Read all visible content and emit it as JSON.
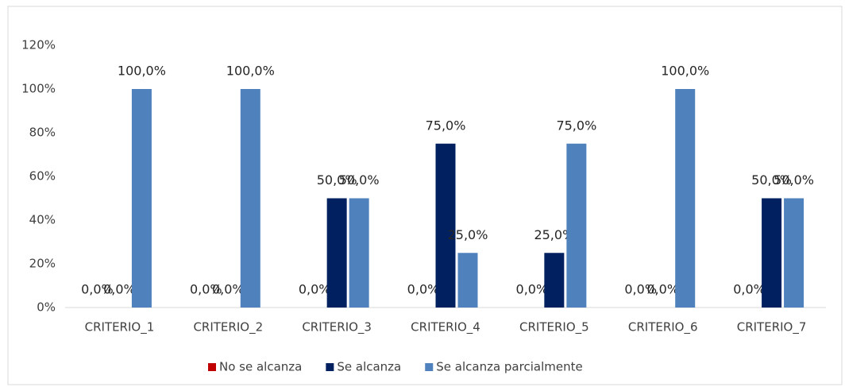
{
  "chart_data": {
    "type": "bar",
    "categories": [
      "CRITERIO_1",
      "CRITERIO_2",
      "CRITERIO_3",
      "CRITERIO_4",
      "CRITERIO_5",
      "CRITERIO_6",
      "CRITERIO_7"
    ],
    "series": [
      {
        "name": "No se alcanza",
        "color": "#c00000",
        "values": [
          0,
          0,
          0,
          0,
          0,
          0,
          0
        ],
        "value_labels": [
          "0,0%",
          "0,0%",
          "0,0%",
          "0,0%",
          "0,0%",
          "0,0%",
          "0,0%"
        ]
      },
      {
        "name": "Se alcanza",
        "color": "#002060",
        "values": [
          0,
          0,
          50,
          75,
          25,
          0,
          50
        ],
        "value_labels": [
          "0,0%",
          "0,0%",
          "50,0%",
          "75,0%",
          "25,0%",
          "0,0%",
          "50,0%"
        ]
      },
      {
        "name": "Se alcanza parcialmente",
        "color": "#4f81bd",
        "values": [
          100,
          100,
          50,
          25,
          75,
          100,
          50
        ],
        "value_labels": [
          "100,0%",
          "100,0%",
          "50,0%",
          "25,0%",
          "75,0%",
          "100,0%",
          "50,0%"
        ]
      }
    ],
    "ylim": [
      0,
      120
    ],
    "yticks": [
      {
        "value": 0,
        "label": "0%"
      },
      {
        "value": 20,
        "label": "20%"
      },
      {
        "value": 40,
        "label": "40%"
      },
      {
        "value": 60,
        "label": "60%"
      },
      {
        "value": 80,
        "label": "80%"
      },
      {
        "value": 100,
        "label": "100%"
      },
      {
        "value": 120,
        "label": "120%"
      }
    ],
    "grid": false,
    "legend": "bottom"
  }
}
